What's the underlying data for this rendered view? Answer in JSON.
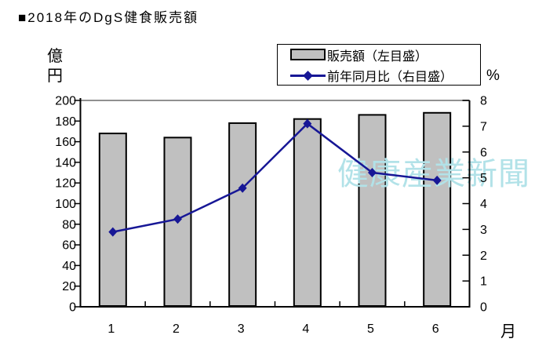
{
  "title": "■2018年のDgS健食販売額",
  "watermark": "健康産業新聞",
  "colors": {
    "bar_fill": "#c0c0c0",
    "bar_border": "#000000",
    "line": "#171796",
    "watermark": "#b2e2e8",
    "plot_top_border": "#909090",
    "axis": "#000000"
  },
  "legend": {
    "bar_label": "販売額（左目盛）",
    "line_label": "前年同月比（右目盛）"
  },
  "axes": {
    "left": {
      "unit": "億円",
      "ticks": [
        "200",
        "180",
        "160",
        "140",
        "120",
        "100",
        "80",
        "60",
        "40",
        "20",
        "0"
      ]
    },
    "right": {
      "unit": "%",
      "ticks": [
        "8",
        "7",
        "6",
        "5",
        "4",
        "3",
        "2",
        "1",
        "0"
      ]
    },
    "x": {
      "unit": "月",
      "labels": [
        "1",
        "2",
        "3",
        "4",
        "5",
        "6"
      ]
    }
  },
  "chart_data": {
    "type": "bar+line combo",
    "title": "■2018年のDgS健食販売額",
    "categories": [
      "1",
      "2",
      "3",
      "4",
      "5",
      "6"
    ],
    "xlabel": "月",
    "ylabel_left": "億円",
    "ylabel_right": "%",
    "ylim_left": [
      0,
      200
    ],
    "ylim_right": [
      0,
      8
    ],
    "left_tick_step": 20,
    "right_tick_step": 1,
    "grid": false,
    "legend_position": "top-right",
    "series": [
      {
        "name": "販売額（左目盛）",
        "type": "bar",
        "axis": "left",
        "unit": "億円",
        "values": [
          168,
          164,
          178,
          182,
          186,
          188
        ],
        "color": "#c0c0c0"
      },
      {
        "name": "前年同月比（右目盛）",
        "type": "line",
        "axis": "right",
        "unit": "%",
        "marker": "diamond",
        "values": [
          2.9,
          3.4,
          4.6,
          7.1,
          5.2,
          4.9
        ],
        "color": "#171796"
      }
    ]
  }
}
